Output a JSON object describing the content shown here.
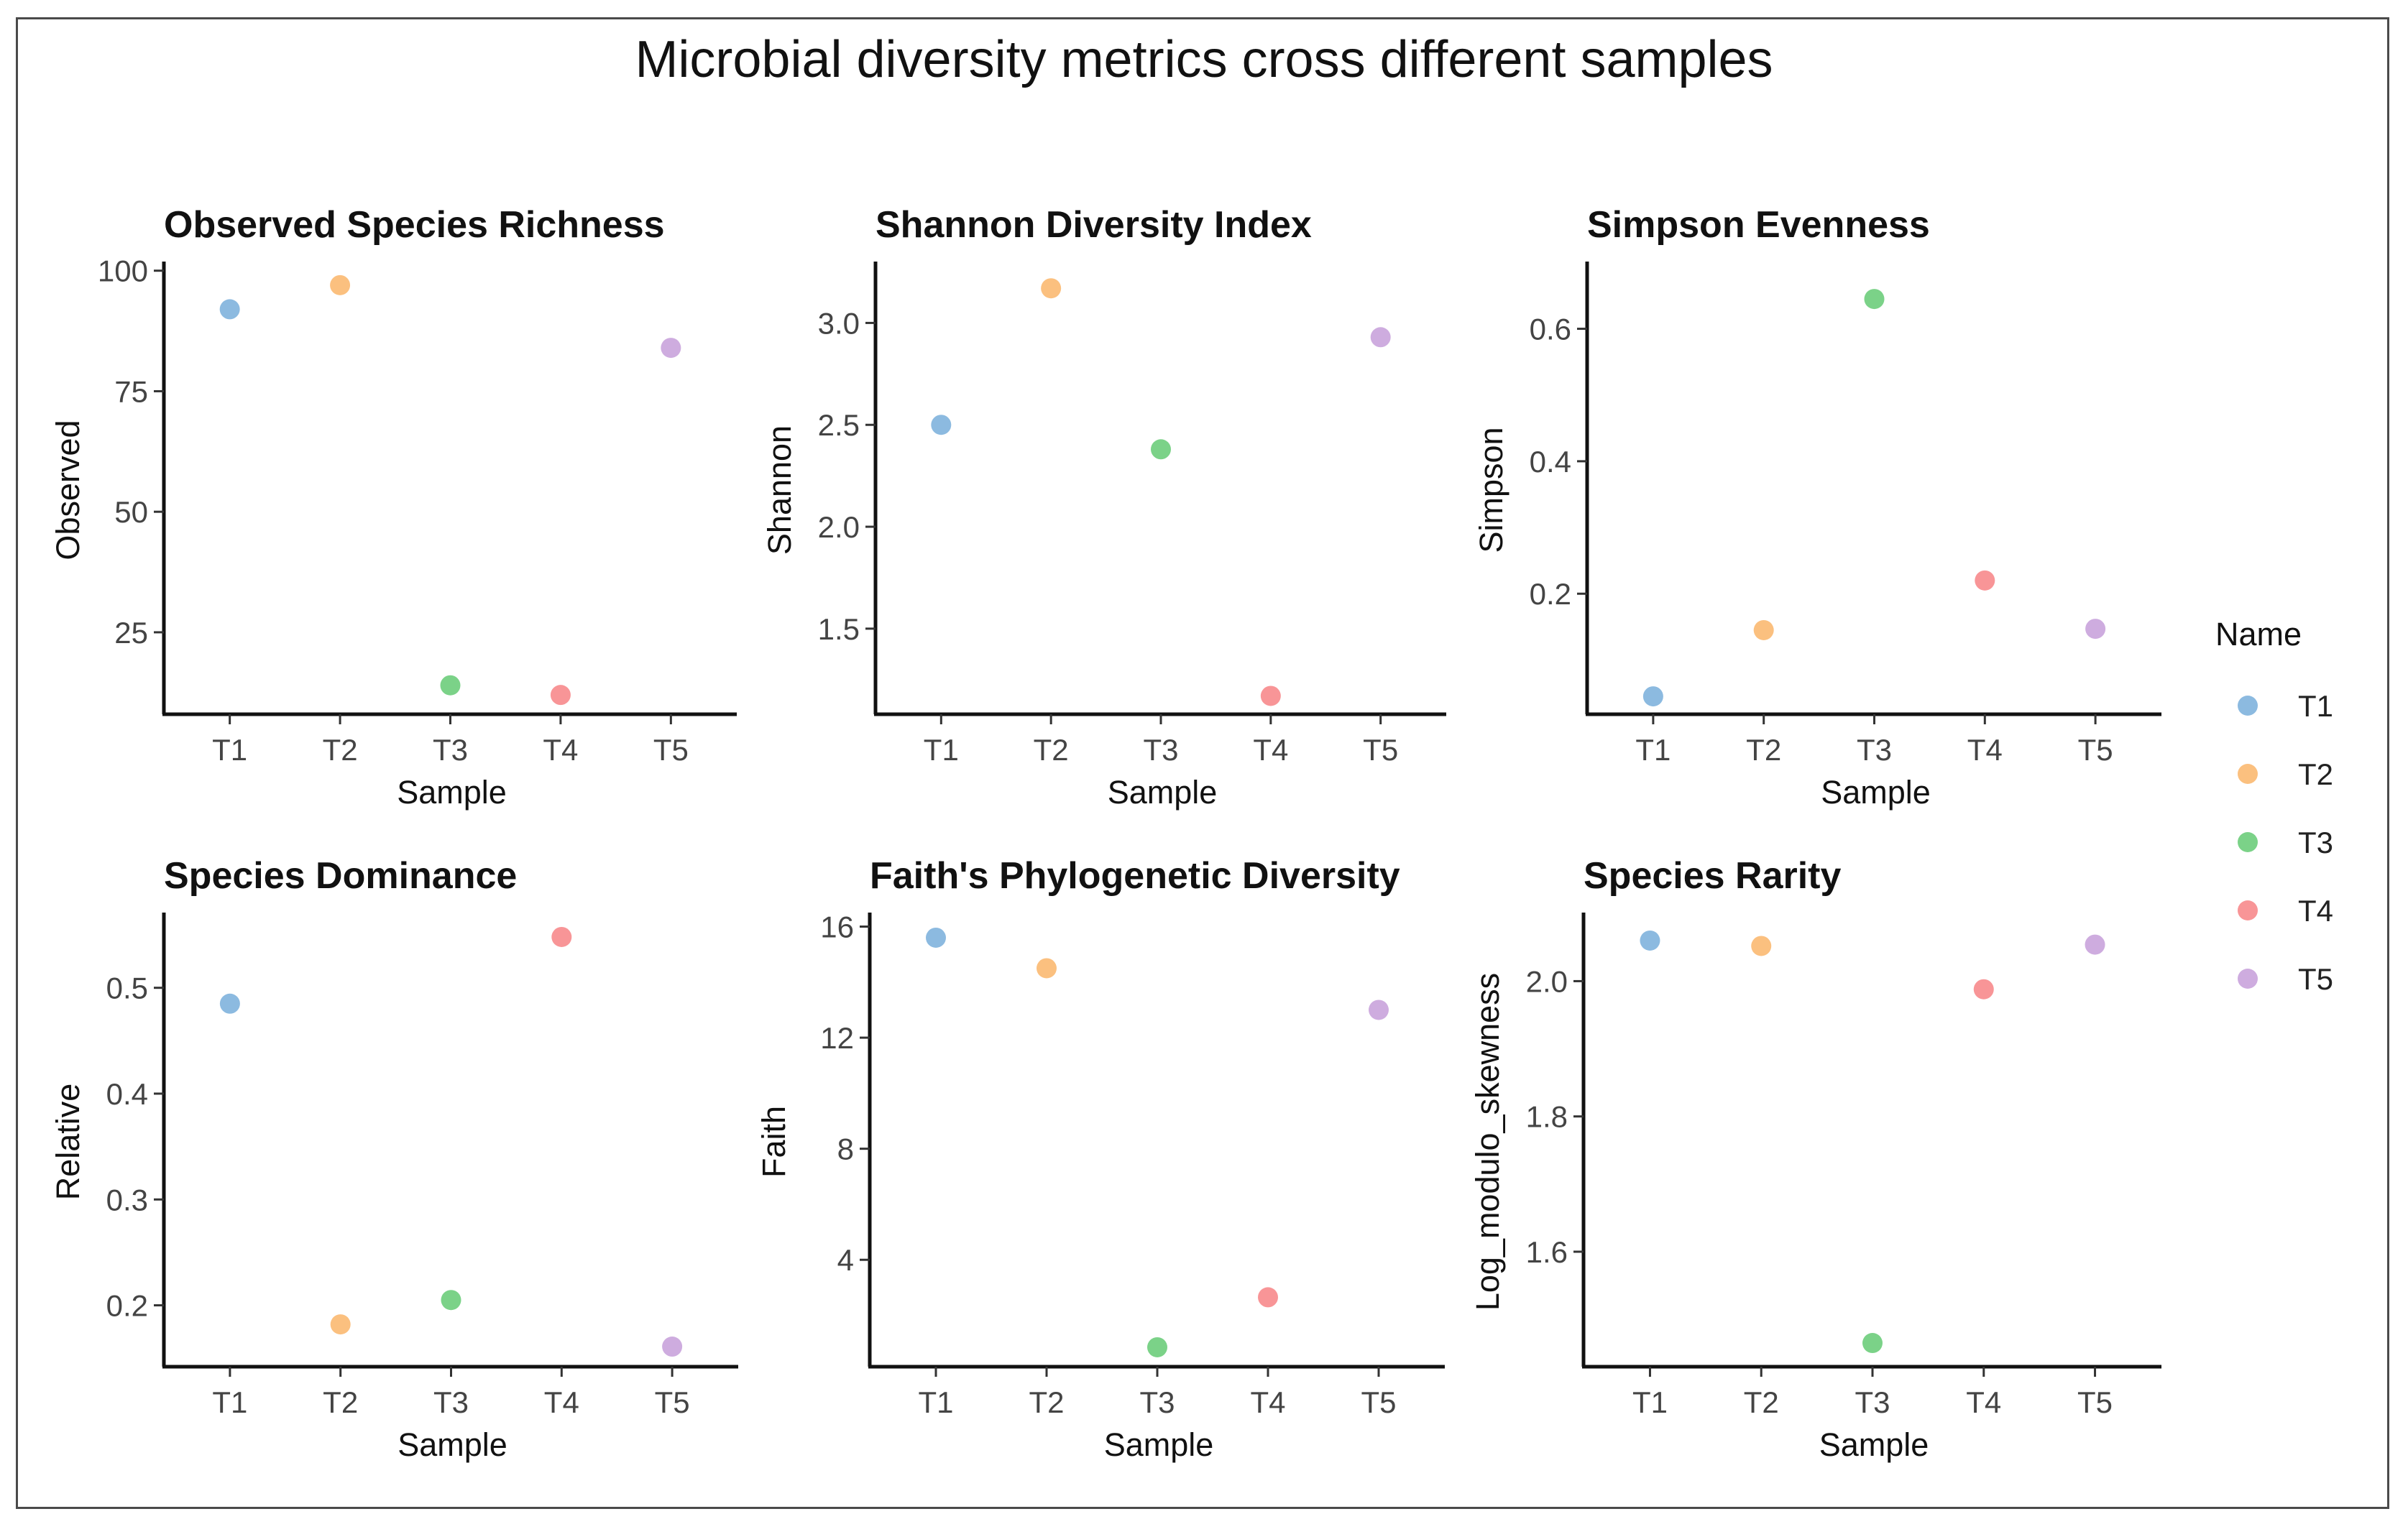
{
  "figure": {
    "title": "Microbial diversity metrics cross different samples"
  },
  "legend": {
    "title": "Name",
    "items": [
      {
        "label": "T1",
        "color": "#7fb2dd"
      },
      {
        "label": "T2",
        "color": "#fbb971"
      },
      {
        "label": "T3",
        "color": "#6dcd7b"
      },
      {
        "label": "T4",
        "color": "#f78a8c"
      },
      {
        "label": "T5",
        "color": "#c9a3dc"
      }
    ]
  },
  "chart_data": [
    {
      "type": "scatter",
      "title": "Observed Species Richness",
      "xlabel": "Sample",
      "ylabel": "Observed",
      "categories": [
        "T1",
        "T2",
        "T3",
        "T4",
        "T5"
      ],
      "values": [
        92,
        97,
        14,
        12,
        84
      ],
      "ylim": [
        8,
        101
      ],
      "yticks": [
        25,
        50,
        75,
        100
      ],
      "ytick_labels": [
        "25",
        "50",
        "75",
        "100"
      ]
    },
    {
      "type": "scatter",
      "title": "Shannon Diversity Index",
      "xlabel": "Sample",
      "ylabel": "Shannon",
      "categories": [
        "T1",
        "T2",
        "T3",
        "T4",
        "T5"
      ],
      "values": [
        2.5,
        3.17,
        2.38,
        1.17,
        2.93
      ],
      "ylim": [
        1.08,
        3.28
      ],
      "yticks": [
        1.5,
        2.0,
        2.5,
        3.0
      ],
      "ytick_labels": [
        "1.5",
        "2.0",
        "2.5",
        "3.0"
      ]
    },
    {
      "type": "scatter",
      "title": "Simpson Evenness",
      "xlabel": "Sample",
      "ylabel": "Simpson",
      "categories": [
        "T1",
        "T2",
        "T3",
        "T4",
        "T5"
      ],
      "values": [
        0.045,
        0.145,
        0.645,
        0.22,
        0.147
      ],
      "ylim": [
        0.018,
        0.695
      ],
      "yticks": [
        0.2,
        0.4,
        0.6
      ],
      "ytick_labels": [
        "0.2",
        "0.4",
        "0.6"
      ]
    },
    {
      "type": "scatter",
      "title": "Species Dominance",
      "xlabel": "Sample",
      "ylabel": "Relative",
      "categories": [
        "T1",
        "T2",
        "T3",
        "T4",
        "T5"
      ],
      "values": [
        0.485,
        0.182,
        0.205,
        0.548,
        0.161
      ],
      "ylim": [
        0.142,
        0.567
      ],
      "yticks": [
        0.2,
        0.3,
        0.4,
        0.5
      ],
      "ytick_labels": [
        "0.2",
        "0.3",
        "0.4",
        "0.5"
      ]
    },
    {
      "type": "scatter",
      "title": "Faith's Phylogenetic Diversity",
      "xlabel": "Sample",
      "ylabel": "Faith",
      "categories": [
        "T1",
        "T2",
        "T3",
        "T4",
        "T5"
      ],
      "values": [
        15.6,
        14.5,
        0.85,
        2.65,
        13.0
      ],
      "ylim": [
        0.15,
        16.35
      ],
      "yticks": [
        4,
        8,
        12,
        16
      ],
      "ytick_labels": [
        "4",
        "8",
        "12",
        "16"
      ]
    },
    {
      "type": "scatter",
      "title": "Species Rarity",
      "xlabel": "Sample",
      "ylabel": "Log_modulo_skewness",
      "categories": [
        "T1",
        "T2",
        "T3",
        "T4",
        "T5"
      ],
      "values": [
        2.06,
        2.052,
        1.465,
        1.988,
        2.054
      ],
      "ylim": [
        1.43,
        2.095
      ],
      "yticks": [
        1.6,
        1.8,
        2.0
      ],
      "ytick_labels": [
        "1.6",
        "1.8",
        "2.0"
      ]
    }
  ]
}
